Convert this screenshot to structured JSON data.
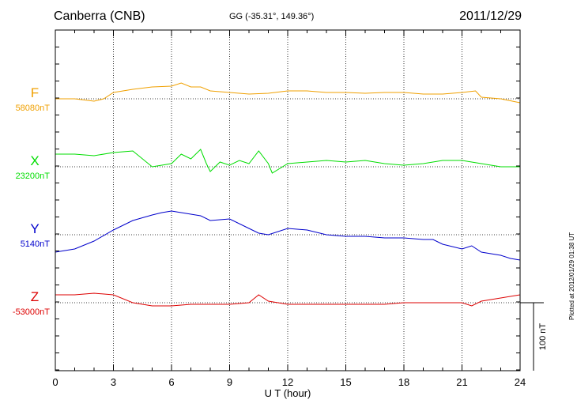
{
  "header": {
    "station": "Canberra (CNB)",
    "coords": "GG (-35.31°, 149.36°)",
    "date": "2011/12/29",
    "plotted": "Plotted at 2012/01/29 01:38 UT"
  },
  "chart_data": {
    "type": "line",
    "xlabel": "U T (hour)",
    "xlim": [
      0,
      24
    ],
    "xticks": [
      "0",
      "3",
      "6",
      "9",
      "12",
      "15",
      "18",
      "21",
      "24"
    ],
    "scale_bar": "100 nT",
    "series": [
      {
        "name": "F",
        "baseline_label": "58080nT",
        "color": "#f0a000",
        "x": [
          0,
          1,
          2,
          2.5,
          3,
          4,
          5,
          6,
          6.5,
          7,
          7.5,
          8,
          9,
          10,
          11,
          12,
          13,
          14,
          15,
          16,
          17,
          18,
          19,
          20,
          21,
          21.7,
          22,
          23,
          24
        ],
        "y": [
          0,
          0,
          -3,
          0,
          8,
          12,
          15,
          16,
          20,
          15,
          15,
          10,
          8,
          6,
          7,
          10,
          10,
          8,
          8,
          7,
          8,
          8,
          6,
          6,
          8,
          10,
          2,
          0,
          -5
        ]
      },
      {
        "name": "X",
        "baseline_label": "23200nT",
        "color": "#00dd00",
        "x": [
          0,
          1,
          2,
          3,
          4,
          4.5,
          5,
          6,
          6.5,
          7,
          7.5,
          7.8,
          8,
          8.5,
          9,
          9.5,
          10,
          10.5,
          11,
          11.2,
          12,
          13,
          14,
          15,
          16,
          17,
          18,
          19,
          20,
          21,
          22,
          23,
          24
        ],
        "y": [
          16,
          16,
          14,
          18,
          20,
          10,
          0,
          4,
          16,
          10,
          22,
          4,
          -6,
          6,
          2,
          8,
          4,
          20,
          4,
          -8,
          4,
          6,
          8,
          6,
          8,
          4,
          2,
          4,
          8,
          8,
          4,
          0,
          0
        ]
      },
      {
        "name": "Y",
        "baseline_label": "5140nT",
        "color": "#0000cc",
        "x": [
          0,
          1,
          2,
          3,
          4,
          5,
          5.5,
          6,
          6.5,
          7,
          7.5,
          8,
          9,
          10,
          10.5,
          11,
          12,
          13,
          14,
          15,
          16,
          17,
          18,
          19,
          19.5,
          20,
          21,
          21.5,
          22,
          23,
          23.5,
          24
        ],
        "y": [
          -22,
          -18,
          -8,
          6,
          18,
          25,
          28,
          30,
          28,
          26,
          24,
          18,
          20,
          8,
          2,
          0,
          8,
          6,
          0,
          -2,
          -2,
          -4,
          -4,
          -6,
          -6,
          -12,
          -18,
          -14,
          -22,
          -26,
          -30,
          -32
        ]
      },
      {
        "name": "Z",
        "baseline_label": "-53000nT",
        "color": "#dd0000",
        "x": [
          0,
          1,
          2,
          3,
          4,
          5,
          6,
          7,
          8,
          9,
          10,
          10.5,
          11,
          12,
          13,
          14,
          15,
          16,
          17,
          18,
          19,
          20,
          21,
          21.5,
          22,
          23,
          24
        ],
        "y": [
          10,
          10,
          12,
          10,
          0,
          -4,
          -4,
          -2,
          -2,
          -2,
          0,
          10,
          2,
          -2,
          -2,
          -2,
          -2,
          -2,
          -2,
          0,
          0,
          0,
          0,
          -4,
          2,
          6,
          10
        ]
      }
    ]
  }
}
